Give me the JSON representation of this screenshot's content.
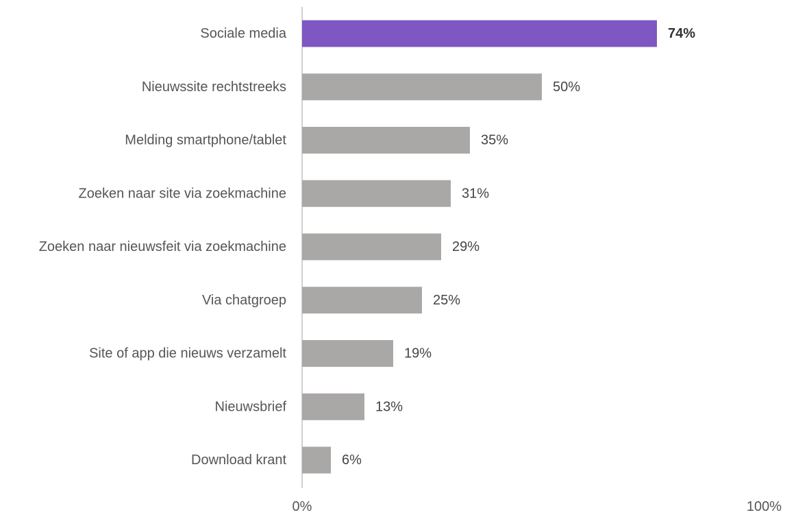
{
  "chart_data": {
    "type": "bar",
    "orientation": "horizontal",
    "categories": [
      "Sociale media",
      "Nieuwssite rechtstreeks",
      "Melding smartphone/tablet",
      "Zoeken naar site via zoekmachine",
      "Zoeken naar nieuwsfeit via zoekmachine",
      "Via chatgroep",
      "Site of app die nieuws verzamelt",
      "Nieuwsbrief",
      "Download krant"
    ],
    "values": [
      74,
      50,
      35,
      31,
      29,
      25,
      19,
      13,
      6
    ],
    "value_labels": [
      "74%",
      "50%",
      "35%",
      "31%",
      "29%",
      "25%",
      "19%",
      "13%",
      "6%"
    ],
    "highlight_index": 0,
    "xlim": [
      0,
      100
    ],
    "x_tick_labels": [
      "0%",
      "100%"
    ],
    "title": "",
    "xlabel": "",
    "ylabel": "",
    "grid": false,
    "colors": {
      "highlight": "#7e57c2",
      "bar": "#a9a8a7",
      "label_text": "#555555",
      "value_text": "#444444",
      "highlight_value_text": "#333333",
      "axis": "#d0d0d0"
    }
  }
}
